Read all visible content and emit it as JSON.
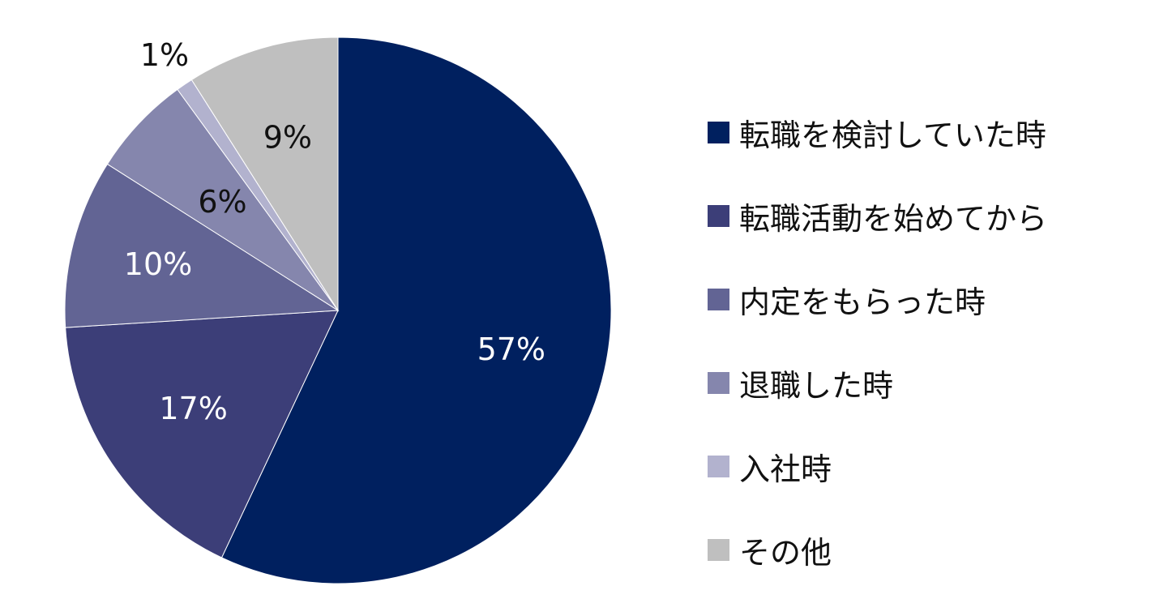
{
  "chart_data": {
    "type": "pie",
    "categories": [
      "転職を検討していた時",
      "転職活動を始めてから",
      "内定をもらった時",
      "退職した時",
      "入社時",
      "その他"
    ],
    "values": [
      57,
      17,
      10,
      6,
      1,
      9
    ],
    "value_labels": [
      "57%",
      "17%",
      "10%",
      "6%",
      "1%",
      "9%"
    ],
    "colors": [
      "#00205f",
      "#3c3e78",
      "#626494",
      "#8586ad",
      "#b2b2ce",
      "#bfbfbf"
    ],
    "label_colors": [
      "#ffffff",
      "#ffffff",
      "#ffffff",
      "#111111",
      "#111111",
      "#111111"
    ],
    "start_angle_deg": 0,
    "direction": "clockwise",
    "legend_position": "right",
    "title": ""
  }
}
